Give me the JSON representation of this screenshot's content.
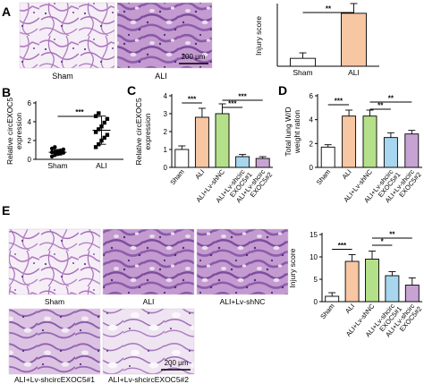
{
  "panels": {
    "A": {
      "letter": "A",
      "images": [
        {
          "label": "Sham",
          "kind": "sham"
        },
        {
          "label": "ALI",
          "kind": "ali"
        }
      ],
      "scale_bar": "200 μm"
    },
    "B": {
      "letter": "B"
    },
    "C": {
      "letter": "C"
    },
    "D": {
      "letter": "D"
    },
    "E": {
      "letter": "E",
      "images": [
        {
          "label": "Sham",
          "kind": "sham"
        },
        {
          "label": "ALI",
          "kind": "ali"
        },
        {
          "label": "ALI+Lv-shNC",
          "kind": "ali"
        },
        {
          "label": "ALI+Lv-shcircEXOC5#1",
          "kind": "mid"
        },
        {
          "label": "ALI+Lv-shcircEXOC5#2",
          "kind": "mid2"
        }
      ],
      "scale_bar": "200 μm"
    }
  },
  "colors": {
    "sham": "#ffffff",
    "ali": "#f7c6a3",
    "shnc": "#b5e08a",
    "sh1": "#a7d6ee",
    "sh2": "#c7a3d4",
    "tissue": "#b488c4",
    "background": "#f5eef6"
  },
  "chart_data": [
    {
      "id": "A",
      "type": "bar",
      "title": "",
      "xlabel": "",
      "ylabel": "Injury score",
      "categories": [
        "Sham",
        "ALI"
      ],
      "values": [
        1.3,
        8.7
      ],
      "errors": [
        0.9,
        1.6
      ],
      "ylim": [
        0,
        10
      ],
      "yticks": [],
      "colors": [
        "#ffffff",
        "#f7c6a3"
      ],
      "significance": [
        {
          "from": 0,
          "to": 1,
          "label": "**"
        }
      ]
    },
    {
      "id": "B",
      "type": "scatter",
      "title": "",
      "xlabel": "",
      "ylabel": "Relative circEXOC5 expression",
      "categories": [
        "Sham",
        "ALI"
      ],
      "yticks": [
        0,
        2,
        4,
        6
      ],
      "ylim": [
        0,
        6
      ],
      "series": [
        {
          "name": "Sham",
          "marker": "circle",
          "values": [
            0.3,
            0.45,
            0.55,
            0.65,
            0.7,
            0.75,
            0.8,
            0.85,
            0.95,
            1.05,
            1.15,
            1.3
          ],
          "mean": 0.75,
          "sd": 0.3
        },
        {
          "name": "ALI",
          "marker": "square",
          "values": [
            1.3,
            1.6,
            2.0,
            2.3,
            2.6,
            2.9,
            3.2,
            3.5,
            3.9,
            4.3,
            4.6,
            4.9
          ],
          "mean": 3.1,
          "sd": 1.5
        }
      ],
      "significance": [
        {
          "from": 0,
          "to": 1,
          "label": "***"
        }
      ]
    },
    {
      "id": "C",
      "type": "bar",
      "title": "",
      "xlabel": "",
      "ylabel": "Relative circEXOC5 expression",
      "categories": [
        "Sham",
        "ALI",
        "ALI+Lv-shNC",
        "ALI+Lv-shcirc EXOC5#1",
        "ALI+Lv-shcirc EXOC5#2"
      ],
      "values": [
        1.0,
        2.8,
        3.0,
        0.6,
        0.5
      ],
      "errors": [
        0.2,
        0.5,
        0.55,
        0.12,
        0.1
      ],
      "yticks": [
        0,
        1,
        2,
        3,
        4
      ],
      "ylim": [
        0,
        4
      ],
      "colors": [
        "#ffffff",
        "#f7c6a3",
        "#b5e08a",
        "#a7d6ee",
        "#c7a3d4"
      ],
      "significance": [
        {
          "from": 0,
          "to": 1,
          "label": "***"
        },
        {
          "from": 2,
          "to": 3,
          "label": "***"
        },
        {
          "from": 2,
          "to": 4,
          "label": "***"
        }
      ]
    },
    {
      "id": "D",
      "type": "bar",
      "title": "",
      "xlabel": "",
      "ylabel": "Total lung W/D weight ration",
      "categories": [
        "Sham",
        "ALI",
        "ALI+Lv-shNC",
        "ALI+Lv-shcirc EXOC5#1",
        "ALI+Lv-shcirc EXOC5#2"
      ],
      "values": [
        1.7,
        4.3,
        4.3,
        2.5,
        2.8
      ],
      "errors": [
        0.2,
        0.5,
        0.5,
        0.4,
        0.3
      ],
      "yticks": [
        0,
        2,
        4,
        6
      ],
      "ylim": [
        0,
        6
      ],
      "colors": [
        "#ffffff",
        "#f7c6a3",
        "#b5e08a",
        "#a7d6ee",
        "#c7a3d4"
      ],
      "significance": [
        {
          "from": 0,
          "to": 1,
          "label": "***"
        },
        {
          "from": 2,
          "to": 3,
          "label": "**"
        },
        {
          "from": 2,
          "to": 4,
          "label": "**"
        }
      ]
    },
    {
      "id": "E",
      "type": "bar",
      "title": "",
      "xlabel": "",
      "ylabel": "Injury score",
      "categories": [
        "Sham",
        "ALI",
        "ALI+Lv-shNC",
        "ALI+Lv-shcirc EXOC5#1",
        "ALI+Lv-shcirc EXOC5#2"
      ],
      "values": [
        1.2,
        9.0,
        9.5,
        5.8,
        3.7
      ],
      "errors": [
        0.8,
        1.5,
        1.8,
        0.9,
        1.6
      ],
      "yticks": [
        0,
        5,
        10,
        15
      ],
      "ylim": [
        0,
        15
      ],
      "colors": [
        "#ffffff",
        "#f7c6a3",
        "#b5e08a",
        "#a7d6ee",
        "#c7a3d4"
      ],
      "significance": [
        {
          "from": 0,
          "to": 1,
          "label": "***"
        },
        {
          "from": 2,
          "to": 3,
          "label": "*"
        },
        {
          "from": 2,
          "to": 4,
          "label": "**"
        }
      ]
    }
  ]
}
